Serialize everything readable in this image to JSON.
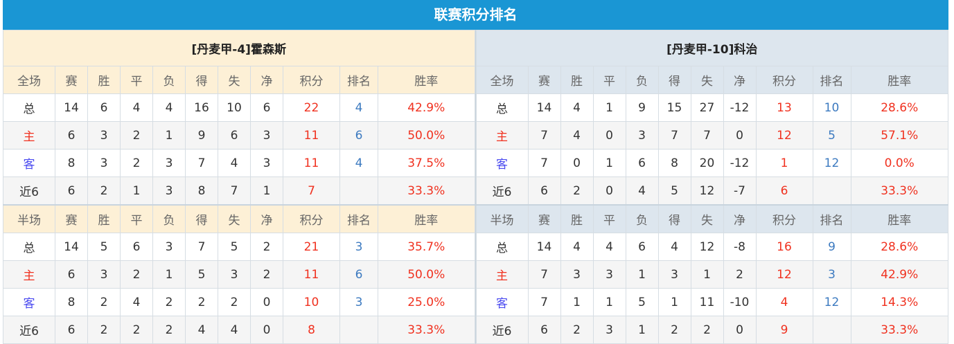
{
  "title": "联赛积分排名",
  "columns_full": [
    "全场",
    "赛",
    "胜",
    "平",
    "负",
    "得",
    "失",
    "净",
    "积分",
    "排名",
    "胜率"
  ],
  "columns_half": [
    "半场",
    "赛",
    "胜",
    "平",
    "负",
    "得",
    "失",
    "净",
    "积分",
    "排名",
    "胜率"
  ],
  "colors": {
    "title_bar": "#1a96d4",
    "left_header": "#fdf0d6",
    "right_header": "#dde6ee",
    "points": "#f0311f",
    "rank": "#3c7ac0"
  },
  "teams": [
    {
      "name": "[丹麦甲-4]霍森斯",
      "full": [
        [
          "总",
          "14",
          "6",
          "4",
          "4",
          "16",
          "10",
          "6",
          "22",
          "4",
          "42.9%"
        ],
        [
          "主",
          "6",
          "3",
          "2",
          "1",
          "9",
          "6",
          "3",
          "11",
          "6",
          "50.0%"
        ],
        [
          "客",
          "8",
          "3",
          "2",
          "3",
          "7",
          "4",
          "3",
          "11",
          "4",
          "37.5%"
        ],
        [
          "近6",
          "6",
          "2",
          "1",
          "3",
          "8",
          "7",
          "1",
          "7",
          "",
          "33.3%"
        ]
      ],
      "half": [
        [
          "总",
          "14",
          "5",
          "6",
          "3",
          "7",
          "5",
          "2",
          "21",
          "3",
          "35.7%"
        ],
        [
          "主",
          "6",
          "3",
          "2",
          "1",
          "5",
          "3",
          "2",
          "11",
          "6",
          "50.0%"
        ],
        [
          "客",
          "8",
          "2",
          "4",
          "2",
          "2",
          "2",
          "0",
          "10",
          "3",
          "25.0%"
        ],
        [
          "近6",
          "6",
          "2",
          "2",
          "2",
          "4",
          "4",
          "0",
          "8",
          "",
          "33.3%"
        ]
      ]
    },
    {
      "name": "[丹麦甲-10]科治",
      "full": [
        [
          "总",
          "14",
          "4",
          "1",
          "9",
          "15",
          "27",
          "-12",
          "13",
          "10",
          "28.6%"
        ],
        [
          "主",
          "7",
          "4",
          "0",
          "3",
          "7",
          "7",
          "0",
          "12",
          "5",
          "57.1%"
        ],
        [
          "客",
          "7",
          "0",
          "1",
          "6",
          "8",
          "20",
          "-12",
          "1",
          "12",
          "0.0%"
        ],
        [
          "近6",
          "6",
          "2",
          "0",
          "4",
          "5",
          "12",
          "-7",
          "6",
          "",
          "33.3%"
        ]
      ],
      "half": [
        [
          "总",
          "14",
          "4",
          "4",
          "6",
          "4",
          "12",
          "-8",
          "16",
          "9",
          "28.6%"
        ],
        [
          "主",
          "7",
          "3",
          "3",
          "1",
          "3",
          "1",
          "2",
          "12",
          "3",
          "42.9%"
        ],
        [
          "客",
          "7",
          "1",
          "1",
          "5",
          "1",
          "11",
          "-10",
          "4",
          "12",
          "14.3%"
        ],
        [
          "近6",
          "6",
          "2",
          "3",
          "1",
          "2",
          "2",
          "0",
          "9",
          "",
          "33.3%"
        ]
      ]
    }
  ]
}
